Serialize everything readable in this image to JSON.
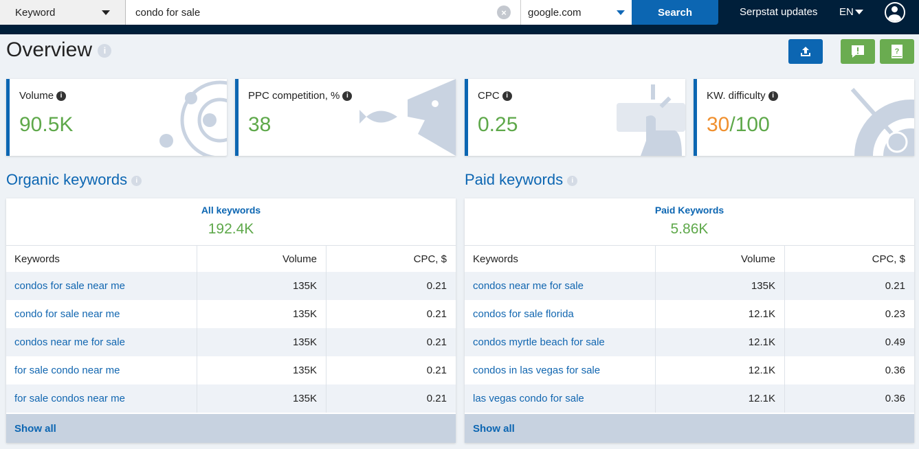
{
  "search": {
    "type": "Keyword",
    "query": "condo for sale",
    "database": "google.com",
    "button": "Search"
  },
  "nav": {
    "updates": "Serpstat updates",
    "lang": "EN"
  },
  "page": {
    "title": "Overview"
  },
  "cards": [
    {
      "label": "Volume",
      "value": "90.5K"
    },
    {
      "label": "PPC competition, %",
      "value": "38"
    },
    {
      "label": "CPC",
      "value": "0.25"
    },
    {
      "label": "KW. difficulty",
      "value": "30",
      "max": "/100",
      "value_color": "#f0902f"
    }
  ],
  "organic": {
    "title": "Organic keywords",
    "summary_label": "All keywords",
    "summary_value": "192.4K",
    "columns": [
      "Keywords",
      "Volume",
      "CPC, $"
    ],
    "rows": [
      [
        "condos for sale near me",
        "135K",
        "0.21"
      ],
      [
        "condo for sale near me",
        "135K",
        "0.21"
      ],
      [
        "condos near me for sale",
        "135K",
        "0.21"
      ],
      [
        "for sale condo near me",
        "135K",
        "0.21"
      ],
      [
        "for sale condos near me",
        "135K",
        "0.21"
      ]
    ],
    "show_all": "Show all"
  },
  "paid": {
    "title": "Paid keywords",
    "summary_label": "Paid Keywords",
    "summary_value": "5.86K",
    "columns": [
      "Keywords",
      "Volume",
      "CPC, $"
    ],
    "rows": [
      [
        "condos near me for sale",
        "135K",
        "0.21"
      ],
      [
        "condos for sale florida",
        "12.1K",
        "0.23"
      ],
      [
        "condos myrtle beach for sale",
        "12.1K",
        "0.49"
      ],
      [
        "condos in las vegas for sale",
        "12.1K",
        "0.36"
      ],
      [
        "las vegas condo for sale",
        "12.1K",
        "0.36"
      ]
    ],
    "show_all": "Show all"
  },
  "colors": {
    "header": "#001f3a",
    "primary": "#0c66b2",
    "green": "#5ea84a",
    "orange": "#f0902f"
  }
}
